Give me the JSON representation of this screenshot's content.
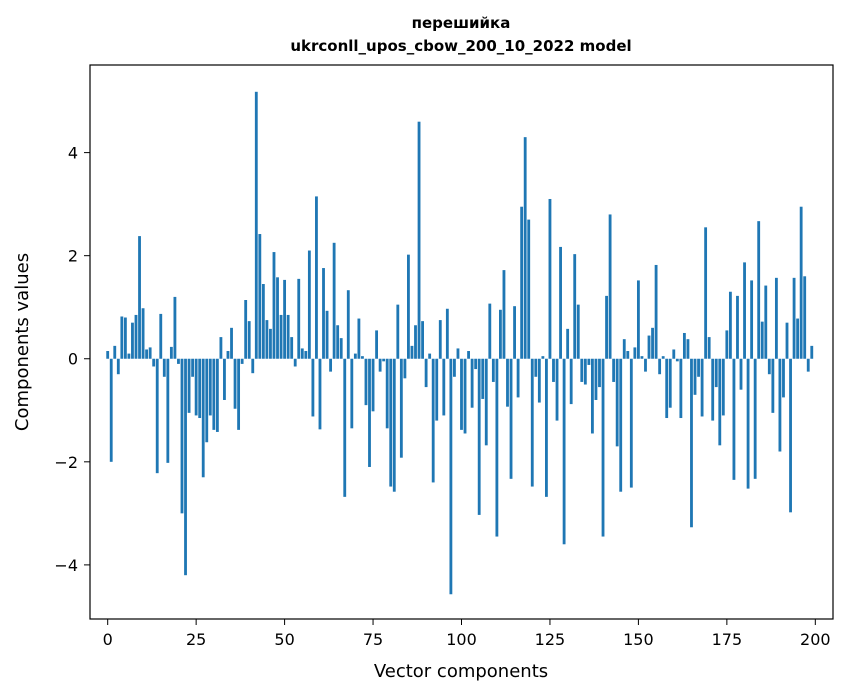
{
  "chart_data": {
    "type": "bar",
    "title": "перешийка\nukrconll_upos_cbow_200_10_2022 model",
    "title_lines": [
      "перешийка",
      "ukrconll_upos_cbow_200_10_2022 model"
    ],
    "xlabel": "Vector components",
    "ylabel": "Components values",
    "xlim": [
      -5,
      205
    ],
    "ylim": [
      -5.05,
      5.7
    ],
    "xticks": [
      0,
      25,
      50,
      75,
      100,
      125,
      150,
      175,
      200
    ],
    "yticks": [
      -4,
      -2,
      0,
      2,
      4
    ],
    "ytick_labels": [
      "−4",
      "−2",
      "0",
      "2",
      "4"
    ],
    "bar_color": "#1f77b4",
    "grid": false,
    "x": [
      0,
      1,
      2,
      3,
      4,
      5,
      6,
      7,
      8,
      9,
      10,
      11,
      12,
      13,
      14,
      15,
      16,
      17,
      18,
      19,
      20,
      21,
      22,
      23,
      24,
      25,
      26,
      27,
      28,
      29,
      30,
      31,
      32,
      33,
      34,
      35,
      36,
      37,
      38,
      39,
      40,
      41,
      42,
      43,
      44,
      45,
      46,
      47,
      48,
      49,
      50,
      51,
      52,
      53,
      54,
      55,
      56,
      57,
      58,
      59,
      60,
      61,
      62,
      63,
      64,
      65,
      66,
      67,
      68,
      69,
      70,
      71,
      72,
      73,
      74,
      75,
      76,
      77,
      78,
      79,
      80,
      81,
      82,
      83,
      84,
      85,
      86,
      87,
      88,
      89,
      90,
      91,
      92,
      93,
      94,
      95,
      96,
      97,
      98,
      99,
      100,
      101,
      102,
      103,
      104,
      105,
      106,
      107,
      108,
      109,
      110,
      111,
      112,
      113,
      114,
      115,
      116,
      117,
      118,
      119,
      120,
      121,
      122,
      123,
      124,
      125,
      126,
      127,
      128,
      129,
      130,
      131,
      132,
      133,
      134,
      135,
      136,
      137,
      138,
      139,
      140,
      141,
      142,
      143,
      144,
      145,
      146,
      147,
      148,
      149,
      150,
      151,
      152,
      153,
      154,
      155,
      156,
      157,
      158,
      159,
      160,
      161,
      162,
      163,
      164,
      165,
      166,
      167,
      168,
      169,
      170,
      171,
      172,
      173,
      174,
      175,
      176,
      177,
      178,
      179,
      180,
      181,
      182,
      183,
      184,
      185,
      186,
      187,
      188,
      189,
      190,
      191,
      192,
      193,
      194,
      195,
      196,
      197,
      198,
      199
    ],
    "values": [
      0.15,
      -2.0,
      0.25,
      -0.3,
      0.82,
      0.8,
      0.1,
      0.7,
      0.85,
      2.38,
      0.98,
      0.18,
      0.22,
      -0.15,
      -2.22,
      0.87,
      -0.35,
      -2.02,
      0.23,
      1.2,
      -0.1,
      -3.0,
      -4.2,
      -1.05,
      -0.35,
      -1.1,
      -1.15,
      -2.3,
      -1.62,
      -1.1,
      -1.38,
      -1.42,
      0.42,
      -0.8,
      0.15,
      0.6,
      -0.97,
      -1.38,
      -0.1,
      1.14,
      0.73,
      -0.28,
      5.18,
      2.42,
      1.45,
      0.75,
      0.58,
      2.07,
      1.58,
      0.85,
      1.53,
      0.85,
      0.42,
      -0.15,
      1.55,
      0.2,
      0.15,
      2.1,
      -1.12,
      3.15,
      -1.37,
      1.76,
      0.93,
      -0.25,
      2.25,
      0.65,
      0.4,
      -2.68,
      1.33,
      -1.35,
      0.1,
      0.78,
      0.05,
      -0.9,
      -2.1,
      -1.02,
      0.55,
      -0.25,
      -0.05,
      -1.35,
      -2.48,
      -2.58,
      1.05,
      -1.92,
      -0.38,
      2.02,
      0.25,
      0.65,
      4.6,
      0.73,
      -0.55,
      0.1,
      -2.4,
      -1.2,
      0.75,
      -1.1,
      0.97,
      -4.57,
      -0.35,
      0.2,
      -1.38,
      -1.45,
      0.15,
      -0.95,
      -0.2,
      -3.03,
      -0.78,
      -1.68,
      1.07,
      -0.45,
      -3.45,
      0.95,
      1.72,
      -0.93,
      -2.33,
      1.02,
      -0.75,
      2.95,
      4.3,
      2.7,
      -2.48,
      -0.35,
      -0.85,
      0.05,
      -2.68,
      3.1,
      -0.45,
      -1.2,
      2.17,
      -3.6,
      0.58,
      -0.88,
      2.03,
      1.05,
      -0.45,
      -0.5,
      -0.12,
      -1.45,
      -0.8,
      -0.55,
      -3.45,
      1.22,
      2.8,
      -0.45,
      -1.7,
      -2.58,
      0.38,
      0.15,
      -2.5,
      0.22,
      1.52,
      0.05,
      -0.25,
      0.45,
      0.6,
      1.82,
      -0.3,
      0.05,
      -1.15,
      -0.95,
      0.18,
      -0.05,
      -1.15,
      0.5,
      0.38,
      -3.27,
      -0.7,
      -0.35,
      -1.12,
      2.55,
      0.42,
      -1.2,
      -0.55,
      -1.68,
      -1.1,
      0.55,
      1.3,
      -2.35,
      1.22,
      -0.6,
      1.87,
      -2.52,
      1.52,
      -2.33,
      2.67,
      0.72,
      1.42,
      -0.3,
      -1.05,
      1.57,
      -1.8,
      -0.75,
      0.7,
      -2.98,
      1.57,
      0.78,
      2.95,
      1.6,
      -0.25,
      0.25
    ]
  }
}
